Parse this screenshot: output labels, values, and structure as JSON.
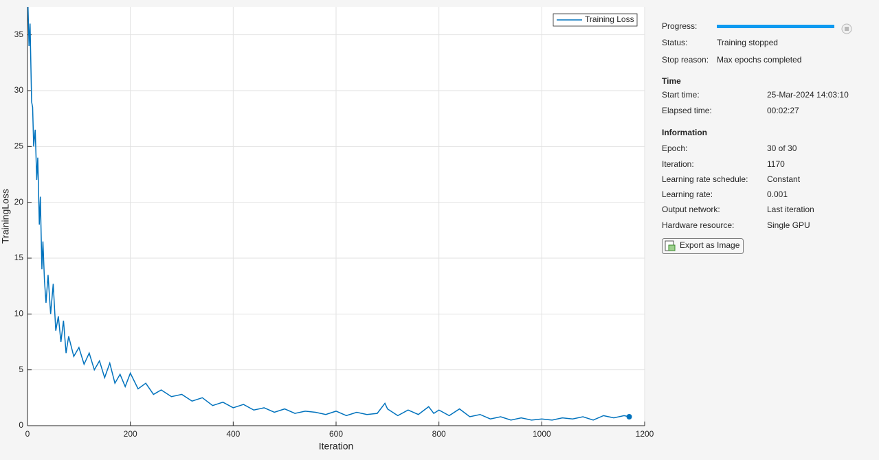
{
  "chart_data": {
    "type": "line",
    "xlabel": "Iteration",
    "ylabel": "TrainingLoss",
    "x": [
      1,
      3,
      5,
      8,
      10,
      12,
      15,
      18,
      20,
      23,
      25,
      28,
      30,
      33,
      36,
      40,
      45,
      50,
      55,
      60,
      65,
      70,
      75,
      80,
      90,
      100,
      110,
      120,
      130,
      140,
      150,
      160,
      170,
      180,
      190,
      200,
      215,
      230,
      245,
      260,
      280,
      300,
      320,
      340,
      360,
      380,
      400,
      420,
      440,
      460,
      480,
      500,
      520,
      540,
      560,
      580,
      600,
      620,
      640,
      660,
      680,
      695,
      700,
      710,
      720,
      740,
      760,
      780,
      790,
      800,
      820,
      840,
      860,
      880,
      900,
      920,
      940,
      960,
      980,
      1000,
      1020,
      1040,
      1060,
      1080,
      1100,
      1120,
      1140,
      1160,
      1170
    ],
    "series": [
      {
        "name": "Training Loss",
        "color": "#0072bd",
        "values": [
          37.5,
          34,
          36,
          29,
          28.5,
          25,
          26.5,
          22,
          24,
          18,
          20.5,
          14,
          16.5,
          13,
          11,
          13.5,
          10,
          12.7,
          8.5,
          9.8,
          7.5,
          9.4,
          6.5,
          8,
          6.2,
          7,
          5.5,
          6.5,
          5,
          5.8,
          4.3,
          5.6,
          3.8,
          4.6,
          3.5,
          4.7,
          3.3,
          3.8,
          2.8,
          3.2,
          2.6,
          2.8,
          2.2,
          2.5,
          1.8,
          2.1,
          1.6,
          1.9,
          1.4,
          1.6,
          1.2,
          1.5,
          1.1,
          1.3,
          1.2,
          1.0,
          1.3,
          0.9,
          1.2,
          1.0,
          1.1,
          2.0,
          1.5,
          1.2,
          0.9,
          1.4,
          1.0,
          1.7,
          1.1,
          1.4,
          0.9,
          1.5,
          0.8,
          1.0,
          0.6,
          0.8,
          0.5,
          0.7,
          0.5,
          0.6,
          0.5,
          0.7,
          0.6,
          0.8,
          0.5,
          0.9,
          0.7,
          0.9,
          0.8
        ]
      }
    ],
    "xlim": [
      0,
      1200
    ],
    "xticks": [
      0,
      200,
      400,
      600,
      800,
      1000,
      1200
    ],
    "ylim": [
      0,
      37.5
    ],
    "yticks": [
      0,
      5,
      10,
      15,
      20,
      25,
      30,
      35
    ],
    "grid": true,
    "legend": "upper right"
  },
  "panel": {
    "progress": {
      "label": "Progress:"
    },
    "status_rows": [
      {
        "label": "Status:",
        "value": "Training stopped"
      },
      {
        "label": "Stop reason:",
        "value": "Max epochs completed"
      }
    ],
    "sections": [
      {
        "title": "Time",
        "rows": [
          {
            "label": "Start time:",
            "value": "25-Mar-2024 14:03:10"
          },
          {
            "label": "Elapsed time:",
            "value": "00:02:27"
          }
        ]
      },
      {
        "title": "Information",
        "rows": [
          {
            "label": "Epoch:",
            "value": "30 of 30"
          },
          {
            "label": "Iteration:",
            "value": "1170"
          },
          {
            "label": "Learning rate schedule:",
            "value": "Constant"
          },
          {
            "label": "Learning rate:",
            "value": "0.001"
          },
          {
            "label": "Output network:",
            "value": "Last iteration"
          },
          {
            "label": "Hardware resource:",
            "value": "Single GPU"
          }
        ]
      }
    ],
    "export_button": "Export as Image"
  }
}
